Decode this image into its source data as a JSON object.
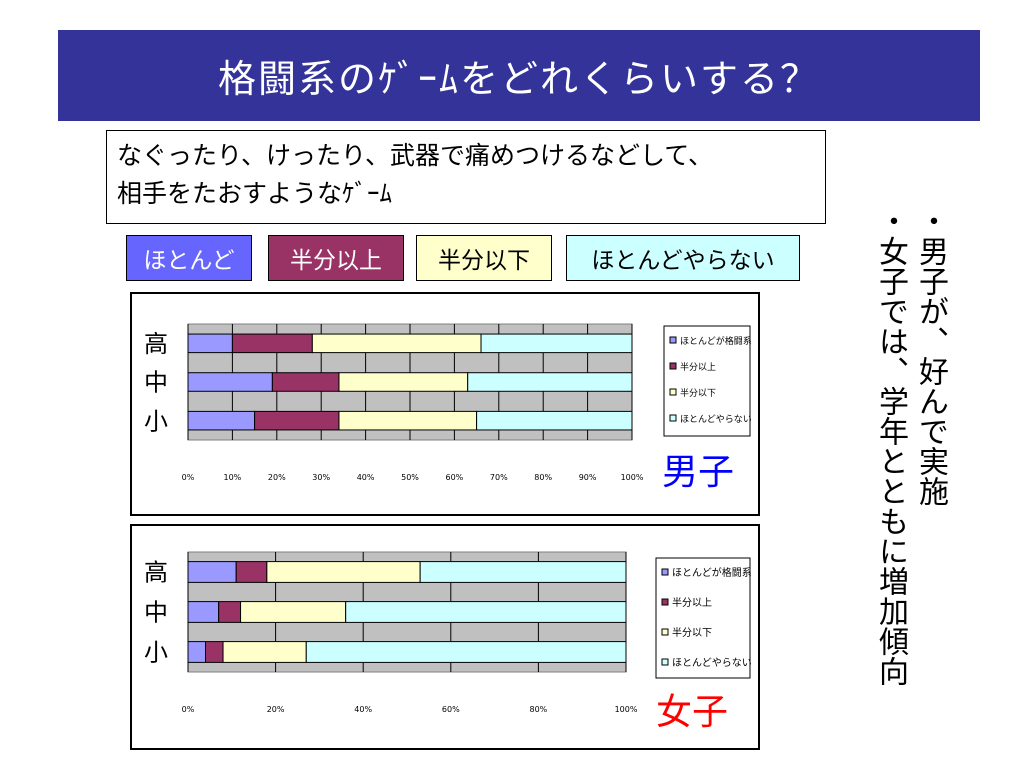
{
  "header": {
    "title": "格闘系のｹﾞｰﾑをどれくらいする？"
  },
  "description": {
    "line1": "なぐったり、けったり、武器で痛めつけるなどして、",
    "line2": "相手をたおすようなｹﾞｰﾑ"
  },
  "legend": [
    {
      "label": "ほとんど",
      "bg": "#6666FF",
      "fg": "#FFFFFF"
    },
    {
      "label": "半分以上",
      "bg": "#993366",
      "fg": "#FFFFFF"
    },
    {
      "label": "半分以下",
      "bg": "#FFFFCC",
      "fg": "#000000"
    },
    {
      "label": "ほとんどやらない",
      "bg": "#CCFFFF",
      "fg": "#000000"
    }
  ],
  "note": {
    "line1": "・男子が、好んで実施",
    "line2": "・女子では、学年とともに増加傾向"
  },
  "colors": {
    "title_bg": "#333399",
    "plot_bg": "#C0C0C0",
    "series": [
      "#9999FF",
      "#993366",
      "#FFFFCC",
      "#CCFFFF"
    ],
    "boys_label": "#0000FF",
    "girls_label": "#FF0000"
  },
  "chart_data": [
    {
      "type": "bar",
      "orientation": "horizontal",
      "stacked": "percent",
      "group_label": "男子",
      "categories": [
        "高",
        "中",
        "小"
      ],
      "series": [
        {
          "name": "ほとんどが格闘系",
          "values": [
            10,
            19,
            15
          ]
        },
        {
          "name": "半分以上",
          "values": [
            18,
            15,
            19
          ]
        },
        {
          "name": "半分以下",
          "values": [
            38,
            29,
            31
          ]
        },
        {
          "name": "ほとんどやらない",
          "values": [
            34,
            37,
            35
          ]
        }
      ],
      "xlim": [
        0,
        100
      ],
      "xticks": [
        "0%",
        "10%",
        "20%",
        "30%",
        "40%",
        "50%",
        "60%",
        "70%",
        "80%",
        "90%",
        "100%"
      ],
      "grid": true,
      "legend_position": "right"
    },
    {
      "type": "bar",
      "orientation": "horizontal",
      "stacked": "percent",
      "group_label": "女子",
      "categories": [
        "高",
        "中",
        "小"
      ],
      "series": [
        {
          "name": "ほとんどが格闘系",
          "values": [
            11,
            7,
            4
          ]
        },
        {
          "name": "半分以上",
          "values": [
            7,
            5,
            4
          ]
        },
        {
          "name": "半分以下",
          "values": [
            35,
            24,
            19
          ]
        },
        {
          "name": "ほとんどやらない",
          "values": [
            47,
            64,
            73
          ]
        }
      ],
      "xlim": [
        0,
        100
      ],
      "xticks": [
        "0%",
        "20%",
        "40%",
        "60%",
        "80%",
        "100%"
      ],
      "grid": true,
      "legend_position": "right"
    }
  ]
}
